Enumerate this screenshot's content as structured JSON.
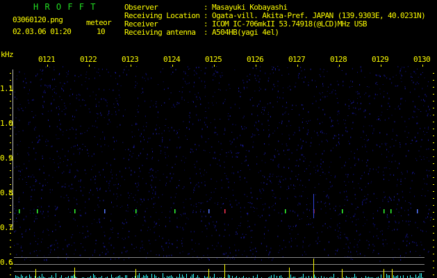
{
  "header": {
    "app_title": "H R O F F T",
    "filename": "03060120.png",
    "datetime": "02.03.06 01:20",
    "meteor_label": "meteor",
    "meteor_count": "10",
    "info": [
      {
        "label": "Observer",
        "value": ": Masayuki Kobayashi"
      },
      {
        "label": "Receiving Location",
        "value": ": Ogata-vill. Akita-Pref. JAPAN (139.9303E, 40.0231N)"
      },
      {
        "label": "Receiver",
        "value": ": ICOM IC-706mkII 53.74918(@LCD)MHz USB"
      },
      {
        "label": "Receiving antenna",
        "value": ": A504HB(yagi 4el)"
      }
    ]
  },
  "colors": {
    "text": "#ffff00",
    "title": "#22dd22",
    "background": "#000000",
    "noise": "#1a1aa0",
    "count_bars": "#33ffff",
    "meteor_bars": "#ffff00"
  },
  "chart_data": {
    "type": "heatmap",
    "ylabel": "kHz",
    "y_ticks": [
      "1.1",
      "1.0",
      "0.9",
      "0.8",
      "0.7",
      "0.6"
    ],
    "y_values": [
      1.1,
      1.0,
      0.9,
      0.8,
      0.7,
      0.6
    ],
    "x_ticks": [
      "0121",
      "0122",
      "0123",
      "0124",
      "0125",
      "0126",
      "0127",
      "0128",
      "0129",
      "0130"
    ],
    "echo_frequency_khz": 0.76,
    "meteor_count": 10
  }
}
